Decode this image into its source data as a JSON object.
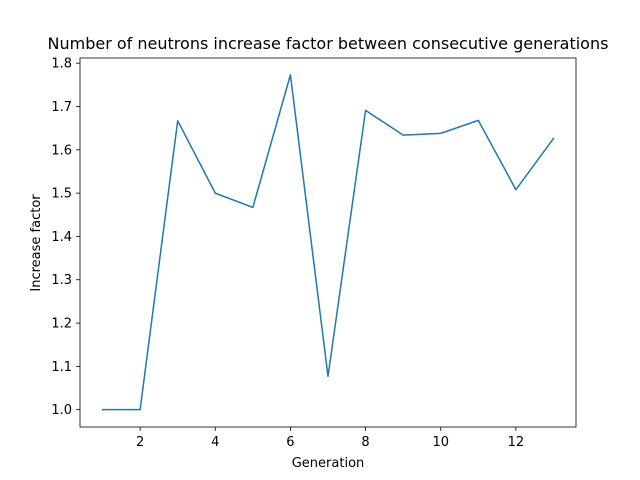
{
  "chart_data": {
    "type": "line",
    "title": "Number of neutrons increase factor between consecutive generations",
    "xlabel": "Generation",
    "ylabel": "Increase factor",
    "xlim": [
      0.4,
      13.6
    ],
    "ylim": [
      0.96,
      1.812
    ],
    "xticks": [
      2,
      4,
      6,
      8,
      10,
      12
    ],
    "yticks": [
      1.0,
      1.1,
      1.2,
      1.3,
      1.4,
      1.5,
      1.6,
      1.7,
      1.8
    ],
    "grid": false,
    "series": [
      {
        "color": "#1f77b4",
        "x": [
          1,
          2,
          3,
          4,
          5,
          6,
          7,
          8,
          9,
          10,
          11,
          12,
          13
        ],
        "y": [
          1.0,
          1.0,
          1.667,
          1.5,
          1.467,
          1.773,
          1.077,
          1.691,
          1.634,
          1.638,
          1.668,
          1.508,
          1.626
        ]
      }
    ]
  }
}
